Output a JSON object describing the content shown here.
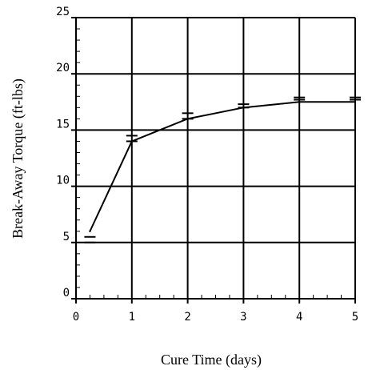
{
  "chart_data": {
    "type": "line",
    "title": "",
    "xlabel": "Cure Time (days)",
    "ylabel": "Break-Away Torque (ft-lbs)",
    "xlim": [
      0,
      5
    ],
    "ylim": [
      0,
      25
    ],
    "x_ticks": [
      "0",
      "1",
      "2",
      "3",
      "4",
      "5"
    ],
    "y_ticks": [
      "0",
      "5",
      "10",
      "15",
      "20",
      "25"
    ],
    "grid": true,
    "minor_ticks": true,
    "series": [
      {
        "x": [
          0.25,
          1,
          2,
          3,
          4,
          5
        ],
        "y": [
          6,
          14,
          16,
          17,
          17.5,
          17.5
        ],
        "error_bars": [
          {
            "x": 0.25,
            "low": 5,
            "high": 5.5
          },
          {
            "x": 1,
            "low": 14,
            "high": 14.5
          },
          {
            "x": 2,
            "low": 16,
            "high": 16.5
          },
          {
            "x": 3,
            "low": 17,
            "high": 17.3
          },
          {
            "x": 4,
            "low": 17.7,
            "high": 17.9
          },
          {
            "x": 5,
            "low": 17.7,
            "high": 17.9
          }
        ]
      }
    ],
    "colors": {
      "line": "#000000",
      "grid": "#000000",
      "background": "#ffffff"
    }
  }
}
